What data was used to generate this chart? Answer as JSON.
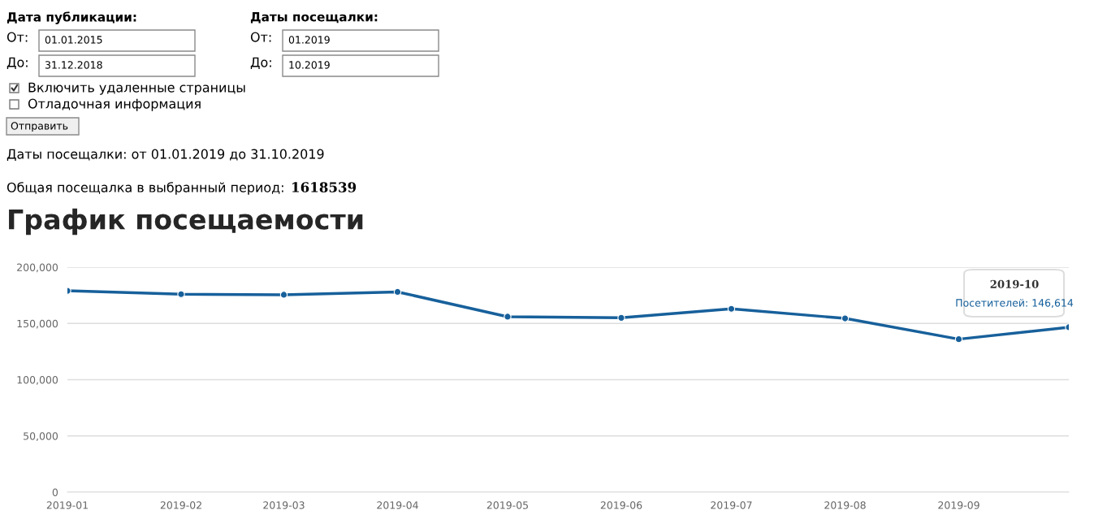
{
  "chart_data": {
    "type": "line",
    "title": "График посещаемости",
    "x": [
      "2019-01",
      "2019-02",
      "2019-03",
      "2019-04",
      "2019-05",
      "2019-06",
      "2019-07",
      "2019-08",
      "2019-09",
      "2019-10"
    ],
    "series": [
      {
        "color": "#17609b",
        "values": [
          179000,
          176000,
          175500,
          178000,
          156000,
          155000,
          163000,
          154500,
          136000,
          146614
        ]
      }
    ],
    "xlim": [
      "2019-01",
      "2019-10"
    ],
    "xticks": [
      "2019-01",
      "2019-02",
      "2019-03",
      "2019-04",
      "2019-05",
      "2019-06",
      "2019-07",
      "2019-08",
      "2019-09"
    ],
    "ylim": [
      0,
      200000
    ],
    "yticks": [
      {
        "value": 0,
        "label": "0"
      },
      {
        "value": 50000,
        "label": "50,000"
      },
      {
        "value": 100000,
        "label": "100,000"
      },
      {
        "value": 150000,
        "label": "150,000"
      },
      {
        "value": 200000,
        "label": "200,000"
      }
    ],
    "grid": "y",
    "marker": "circle",
    "line_style": "solid",
    "annotations": [
      "Дата публикации:",
      "От:",
      "01.01.2015",
      "До:",
      "31.12.2018",
      "Даты посещалки:",
      "От:",
      "01.2019",
      "До:",
      "10.2019",
      "Включить удаленные страницы",
      "Отладочная информация",
      "Отправить",
      "Даты посещалки: от 01.01.2019 до 31.10.2019",
      "Общая посещалка в выбранный период:",
      "1618539",
      "2019-10",
      "Посетителей: 146,614"
    ]
  }
}
